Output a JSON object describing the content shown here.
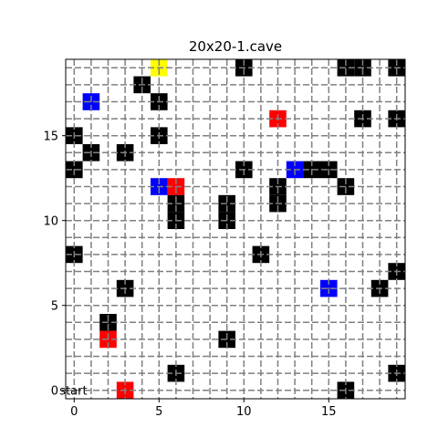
{
  "chart_data": {
    "type": "heatmap",
    "title": "20x20-1.cave",
    "grid_size": [
      20,
      20
    ],
    "xlim": [
      -0.5,
      19.5
    ],
    "ylim": [
      -0.5,
      19.5
    ],
    "xticks": [
      0,
      5,
      10,
      15
    ],
    "yticks": [
      0,
      5,
      10,
      15
    ],
    "grid": true,
    "grid_style": "dashed",
    "colors": {
      "wall": "#000000",
      "blue": "#0000ff",
      "red": "#ff0000",
      "yellow": "#ffff00",
      "grid": "#808080"
    },
    "cells": [
      {
        "x": 5,
        "y": 19,
        "kind": "yellow"
      },
      {
        "x": 10,
        "y": 19,
        "kind": "wall"
      },
      {
        "x": 16,
        "y": 19,
        "kind": "wall"
      },
      {
        "x": 17,
        "y": 19,
        "kind": "wall"
      },
      {
        "x": 19,
        "y": 19,
        "kind": "wall"
      },
      {
        "x": 4,
        "y": 18,
        "kind": "wall"
      },
      {
        "x": 1,
        "y": 17,
        "kind": "blue"
      },
      {
        "x": 5,
        "y": 17,
        "kind": "wall"
      },
      {
        "x": 12,
        "y": 16,
        "kind": "red"
      },
      {
        "x": 17,
        "y": 16,
        "kind": "wall"
      },
      {
        "x": 19,
        "y": 16,
        "kind": "wall"
      },
      {
        "x": 0,
        "y": 15,
        "kind": "wall"
      },
      {
        "x": 5,
        "y": 15,
        "kind": "wall"
      },
      {
        "x": 1,
        "y": 14,
        "kind": "wall"
      },
      {
        "x": 3,
        "y": 14,
        "kind": "wall"
      },
      {
        "x": 0,
        "y": 13,
        "kind": "wall"
      },
      {
        "x": 10,
        "y": 13,
        "kind": "wall"
      },
      {
        "x": 13,
        "y": 13,
        "kind": "blue"
      },
      {
        "x": 14,
        "y": 13,
        "kind": "wall"
      },
      {
        "x": 15,
        "y": 13,
        "kind": "wall"
      },
      {
        "x": 5,
        "y": 12,
        "kind": "blue"
      },
      {
        "x": 6,
        "y": 12,
        "kind": "red"
      },
      {
        "x": 12,
        "y": 12,
        "kind": "wall"
      },
      {
        "x": 16,
        "y": 12,
        "kind": "wall"
      },
      {
        "x": 9,
        "y": 11,
        "kind": "wall"
      },
      {
        "x": 12,
        "y": 11,
        "kind": "wall"
      },
      {
        "x": 6,
        "y": 11,
        "kind": "wall"
      },
      {
        "x": 6,
        "y": 10,
        "kind": "wall"
      },
      {
        "x": 9,
        "y": 10,
        "kind": "wall"
      },
      {
        "x": 0,
        "y": 8,
        "kind": "wall"
      },
      {
        "x": 11,
        "y": 8,
        "kind": "wall"
      },
      {
        "x": 19,
        "y": 7,
        "kind": "wall"
      },
      {
        "x": 3,
        "y": 6,
        "kind": "wall"
      },
      {
        "x": 15,
        "y": 6,
        "kind": "blue"
      },
      {
        "x": 18,
        "y": 6,
        "kind": "wall"
      },
      {
        "x": 2,
        "y": 4,
        "kind": "wall"
      },
      {
        "x": 2,
        "y": 3,
        "kind": "red"
      },
      {
        "x": 9,
        "y": 3,
        "kind": "wall"
      },
      {
        "x": 6,
        "y": 1,
        "kind": "wall"
      },
      {
        "x": 19,
        "y": 1,
        "kind": "wall"
      },
      {
        "x": 3,
        "y": 0,
        "kind": "red"
      },
      {
        "x": 16,
        "y": 0,
        "kind": "wall"
      }
    ],
    "annotations": [
      {
        "text": "start",
        "x": 0,
        "y": 0
      }
    ]
  }
}
